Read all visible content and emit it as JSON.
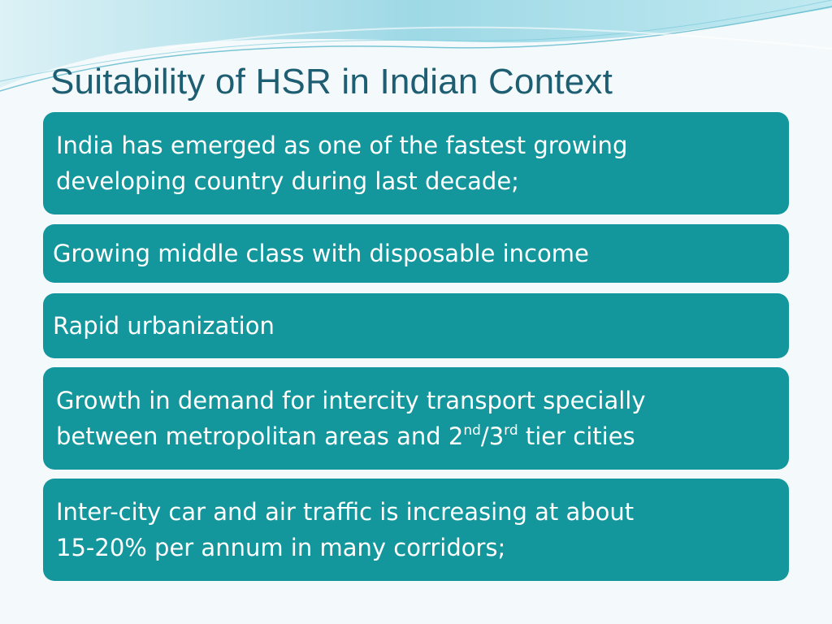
{
  "slide": {
    "title": "Suitability of HSR in Indian Context",
    "theme_colors": {
      "background": "#f4fafb",
      "box": "#13979c",
      "title": "#1d5e73",
      "wave": "#6cc6d8"
    },
    "boxes": [
      {
        "lines": [
          "India has emerged as one of the fastest growing",
          "developing country during last decade;"
        ]
      },
      {
        "lines": [
          "Growing middle class with disposable income"
        ]
      },
      {
        "lines": [
          "Rapid urbanization"
        ]
      },
      {
        "line1": "Growth in demand for intercity transport specially",
        "line2_a": "between metropolitan areas and 2",
        "line2_sup1": "nd",
        "line2_b": "/3",
        "line2_sup2": "rd",
        "line2_c": " tier cities"
      },
      {
        "lines": [
          "Inter-city car and air traffic is increasing at about",
          "15-20% per annum in many corridors;"
        ]
      }
    ]
  }
}
